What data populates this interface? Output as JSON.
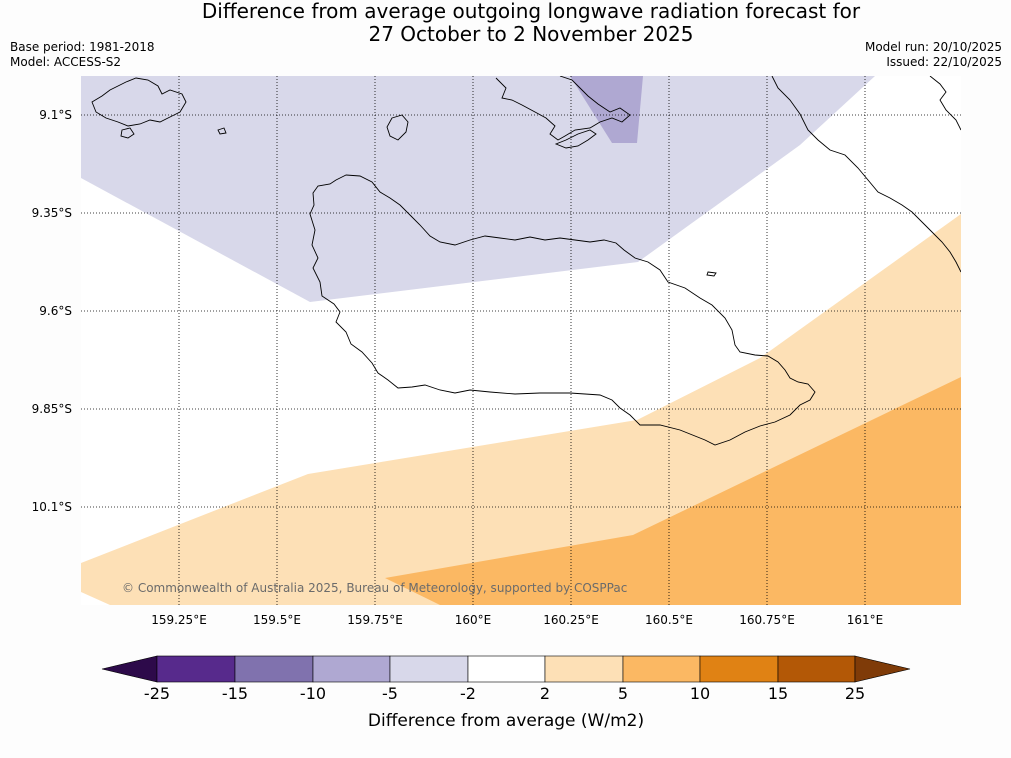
{
  "header": {
    "title_line1": "Difference from average outgoing longwave radiation forecast for",
    "title_line2": "27 October to 2 November 2025",
    "base_period": "Base period: 1981-2018",
    "model": "Model: ACCESS-S2",
    "model_run": "Model run: 20/10/2025",
    "issued": "Issued: 22/10/2025"
  },
  "map": {
    "lat_labels": [
      "9.1°S",
      "9.35°S",
      "9.6°S",
      "9.85°S",
      "10.1°S"
    ],
    "lon_labels": [
      "159.25°E",
      "159.5°E",
      "159.75°E",
      "160°E",
      "160.25°E",
      "160.5°E",
      "160.75°E",
      "161°E"
    ],
    "copyright": "© Commonwealth of Australia 2025, Bureau of Meteorology, supported by COSPPac"
  },
  "colorbar": {
    "title": "Difference from average (W/m2)",
    "tick_labels": [
      "-25",
      "-15",
      "-10",
      "-5",
      "-2",
      "2",
      "5",
      "10",
      "15",
      "25"
    ],
    "colors": {
      "below_min": "#2d0a4a",
      "bins": [
        "#572a8c",
        "#8072ae",
        "#afa8d2",
        "#d8d8ea",
        "#ffffff",
        "#fde0b6",
        "#fbb863",
        "#e08214",
        "#b35806"
      ],
      "above_max": "#7f3b08"
    }
  },
  "contours": {
    "neg5_to_neg2": "#d8d8ea",
    "neg10_to_neg5": "#afa8d2",
    "pos2_to_pos5": "#fde0b6",
    "pos5_to_pos10": "#fbb863"
  }
}
